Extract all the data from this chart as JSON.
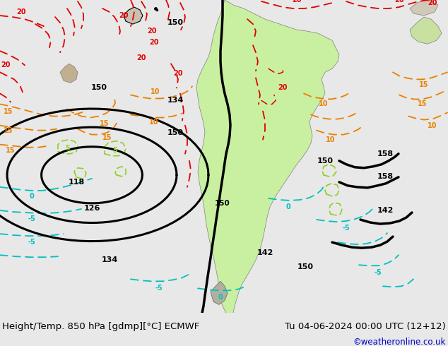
{
  "title_left": "Height/Temp. 850 hPa [gdmp][°C] ECMWF",
  "title_right": "Tu 04-06-2024 00:00 UTC (12+12)",
  "copyright": "©weatheronline.co.uk",
  "bg_color": "#e8e8e8",
  "map_bg_color": "#e8e8e8",
  "bottom_bar_color": "#e8e8e8",
  "bottom_text_color": "#000000",
  "copyright_color": "#0000cc",
  "land_green": "#c8f0a0",
  "land_grey": "#c0b8a0",
  "fig_width": 6.34,
  "fig_height": 4.9,
  "dpi": 100,
  "bottom_bar_height": 0.095,
  "title_fontsize": 9.5,
  "copyright_fontsize": 8.5
}
